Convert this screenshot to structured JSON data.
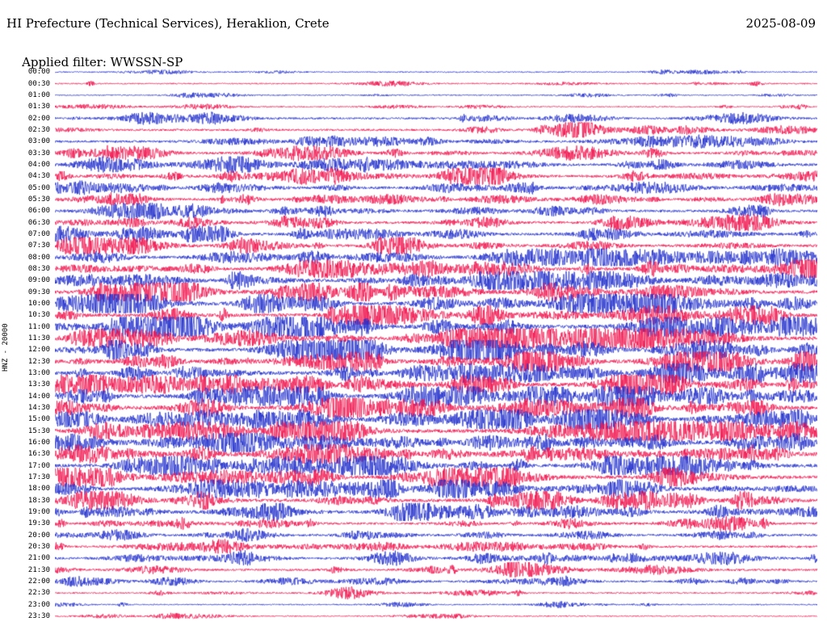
{
  "header": {
    "title": "HI Prefecture (Technical Services), Heraklion, Crete",
    "date": "2025-08-09",
    "filter": "Applied filter: WWSSN-SP"
  },
  "axis": {
    "channel_label": "HNZ - 20000"
  },
  "chart_data": {
    "type": "line",
    "subtype": "helicorder-seismogram",
    "title": "HI Prefecture (Technical Services), Heraklion, Crete",
    "date": "2025-08-09",
    "filter": "WWSSN-SP",
    "channel": "HNZ",
    "scale": 20000,
    "minutes_per_row": 30,
    "rows": 48,
    "row_labels": [
      "00:00",
      "00:30",
      "01:00",
      "01:30",
      "02:00",
      "02:30",
      "03:00",
      "03:30",
      "04:00",
      "04:30",
      "05:00",
      "05:30",
      "06:00",
      "06:30",
      "07:00",
      "07:30",
      "08:00",
      "08:30",
      "09:00",
      "09:30",
      "10:00",
      "10:30",
      "11:00",
      "11:30",
      "12:00",
      "12:30",
      "13:00",
      "13:30",
      "14:00",
      "14:30",
      "15:00",
      "15:30",
      "16:00",
      "16:30",
      "17:00",
      "17:30",
      "18:00",
      "18:30",
      "19:00",
      "19:30",
      "20:00",
      "20:30",
      "21:00",
      "21:30",
      "22:00",
      "22:30",
      "23:00",
      "23:30"
    ],
    "row_activity": [
      0.08,
      0.12,
      0.08,
      0.1,
      0.3,
      0.33,
      0.36,
      0.4,
      0.46,
      0.5,
      0.46,
      0.44,
      0.45,
      0.46,
      0.48,
      0.5,
      0.55,
      0.6,
      0.64,
      0.66,
      0.7,
      0.7,
      0.74,
      0.75,
      0.75,
      0.75,
      0.75,
      0.76,
      0.75,
      0.74,
      0.75,
      0.74,
      0.7,
      0.7,
      0.7,
      0.68,
      0.65,
      0.64,
      0.6,
      0.38,
      0.36,
      0.36,
      0.4,
      0.36,
      0.3,
      0.16,
      0.1,
      0.08
    ],
    "trace_colors": {
      "even_rows": "#2230cc",
      "odd_rows": "#f0134d"
    },
    "background": "#ffffff",
    "seed": 20250809
  }
}
